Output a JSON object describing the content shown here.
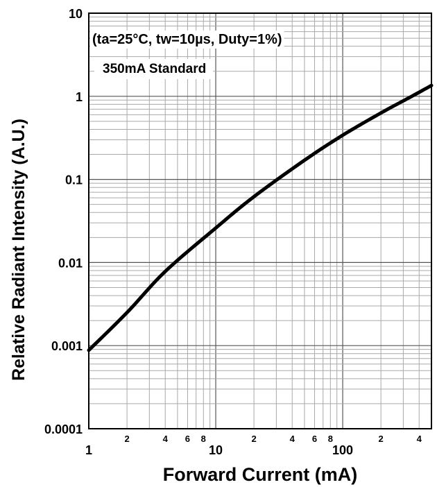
{
  "chart_data": {
    "type": "line",
    "xlabel": "Forward Current (mA)",
    "ylabel": "Relative Radiant Intensity (A.U.)",
    "x_scale": "log",
    "y_scale": "log",
    "xlim": [
      1,
      500
    ],
    "ylim": [
      0.0001,
      10
    ],
    "grid": true,
    "x_major_ticks": [
      {
        "value": 1,
        "label": "1"
      },
      {
        "value": 10,
        "label": "10"
      },
      {
        "value": 100,
        "label": "100"
      }
    ],
    "x_minor_ticks": [
      {
        "value": 2,
        "label": "2"
      },
      {
        "value": 4,
        "label": "4"
      },
      {
        "value": 6,
        "label": "6"
      },
      {
        "value": 8,
        "label": "8"
      },
      {
        "value": 20,
        "label": "2"
      },
      {
        "value": 40,
        "label": "4"
      },
      {
        "value": 60,
        "label": "6"
      },
      {
        "value": 80,
        "label": "8"
      },
      {
        "value": 200,
        "label": "2"
      },
      {
        "value": 400,
        "label": "4"
      }
    ],
    "y_ticks": [
      {
        "value": 10,
        "label": "10"
      },
      {
        "value": 1,
        "label": "1"
      },
      {
        "value": 0.1,
        "label": "0.1"
      },
      {
        "value": 0.01,
        "label": "0.01"
      },
      {
        "value": 0.001,
        "label": "0.001"
      },
      {
        "value": 0.0001,
        "label": "0.0001"
      }
    ],
    "annotations": [
      "(ta=25°C, tw=10µs, Duty=1%)",
      "350mA Standard"
    ],
    "series": [
      {
        "color": "#000000",
        "x": [
          1,
          2,
          4,
          10,
          20,
          50,
          100,
          200,
          350,
          500
        ],
        "y": [
          0.00088,
          0.0025,
          0.0078,
          0.026,
          0.062,
          0.17,
          0.34,
          0.63,
          1.0,
          1.35
        ]
      }
    ]
  }
}
